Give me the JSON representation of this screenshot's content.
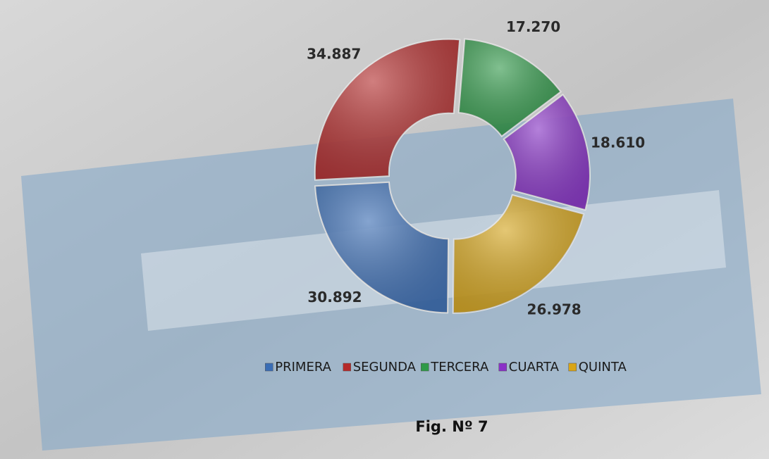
{
  "chart_data": {
    "type": "donut",
    "categories": [
      "PRIMERA",
      "SEGUNDA",
      "TERCERA",
      "CUARTA",
      "QUINTA"
    ],
    "values": [
      30892,
      34887,
      17270,
      18610,
      26978
    ],
    "value_labels": [
      "30.892",
      "34.887",
      "17.270",
      "18.610",
      "26.978"
    ],
    "colors": [
      "#3a6db5",
      "#b52a2a",
      "#2f9a48",
      "#8a30c8",
      "#d9a516"
    ],
    "legend": "bottom",
    "caption": "Fig. Nº 7"
  }
}
